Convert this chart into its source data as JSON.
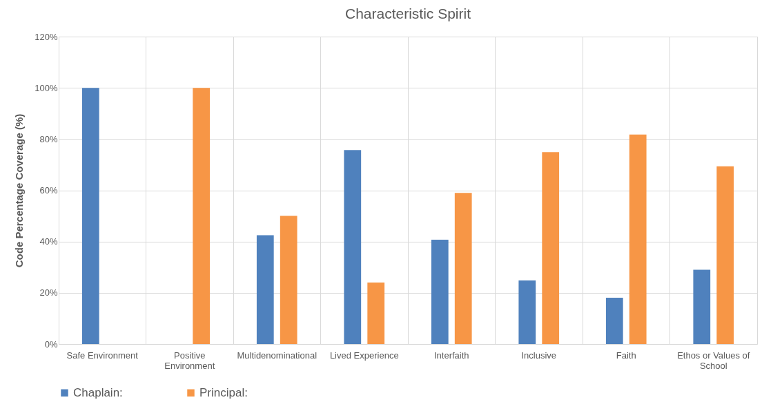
{
  "chart_data": {
    "type": "bar",
    "title": "Characteristic Spirit",
    "ylabel": "Code Percentage Coverage (%)",
    "categories": [
      "Safe Environment",
      "Positive Environment",
      "Multidenominational",
      "Lived Experience",
      "Interfaith",
      "Inclusive",
      "Faith",
      "Ethos or Values of School"
    ],
    "series": [
      {
        "name": "Chaplain:",
        "color": "#4f81bd",
        "values": [
          100,
          0,
          42.5,
          75.7,
          40.7,
          24.8,
          18.1,
          29.0
        ]
      },
      {
        "name": "Principal:",
        "color": "#f79646",
        "values": [
          0,
          100,
          50,
          24.0,
          59.0,
          74.9,
          81.8,
          69.4
        ]
      }
    ],
    "ylim": [
      0,
      120
    ],
    "yticks": [
      {
        "value": 0,
        "label": "0%"
      },
      {
        "value": 20,
        "label": "20%"
      },
      {
        "value": 40,
        "label": "40%"
      },
      {
        "value": 60,
        "label": "60%"
      },
      {
        "value": 80,
        "label": "80%"
      },
      {
        "value": 100,
        "label": "100%"
      },
      {
        "value": 120,
        "label": "120%"
      }
    ],
    "grid": true,
    "legend": "bottom"
  }
}
